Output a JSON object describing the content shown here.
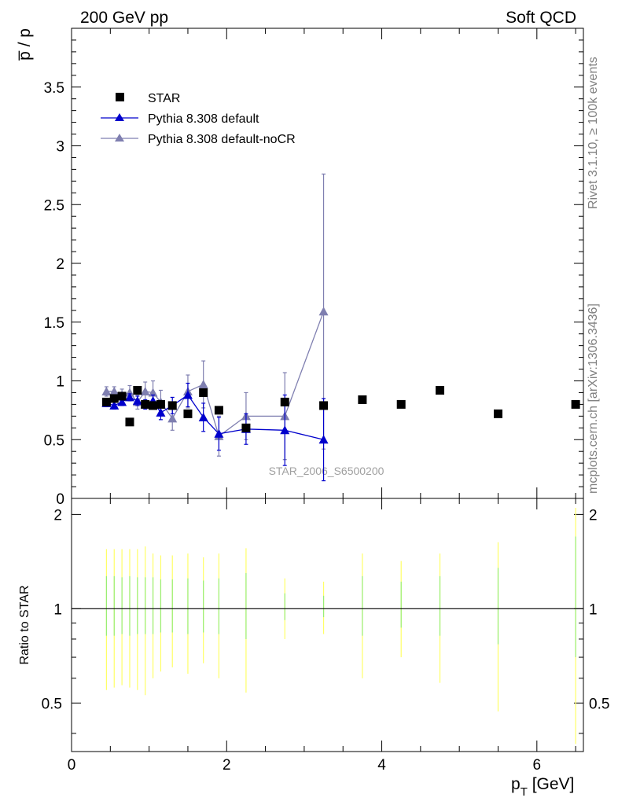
{
  "header": {
    "left": "200 GeV pp",
    "right": "Soft QCD"
  },
  "sidebar": {
    "rivet": "Rivet 3.1.10, ≥ 100k events",
    "mcplots": "mcplots.cern.ch [arXiv:1306.3436]"
  },
  "watermark": "STAR_2006_S6500200",
  "chart_data": [
    {
      "type": "scatter",
      "panel": "main",
      "ylabel": "p̅ / p",
      "ylim": [
        0,
        4.0
      ],
      "yticks": [
        "0",
        "0.5",
        "1",
        "1.5",
        "2",
        "2.5",
        "3",
        "3.5"
      ],
      "yticks_values": [
        0,
        0.5,
        1,
        1.5,
        2,
        2.5,
        3,
        3.5
      ],
      "xlim": [
        0,
        6.6
      ],
      "legend": {
        "position": "top-left",
        "entries": [
          "STAR",
          "Pythia 8.308 default",
          "Pythia 8.308 default-noCR"
        ]
      },
      "colors": {
        "STAR": "#000000",
        "default": "#0000cc",
        "noCR": "#7f7fb0"
      },
      "series": [
        {
          "name": "STAR",
          "marker": "square",
          "x": [
            0.45,
            0.55,
            0.65,
            0.75,
            0.85,
            0.95,
            1.05,
            1.15,
            1.3,
            1.5,
            1.7,
            1.9,
            2.25,
            2.75,
            3.25,
            3.75,
            4.25,
            4.75,
            5.5,
            6.5
          ],
          "y": [
            0.82,
            0.85,
            0.87,
            0.65,
            0.92,
            0.8,
            0.79,
            0.8,
            0.79,
            0.72,
            0.9,
            0.75,
            0.6,
            0.82,
            0.79,
            0.84,
            0.8,
            0.92,
            0.72,
            0.8
          ]
        },
        {
          "name": "Pythia 8.308 default",
          "marker": "triangle",
          "x": [
            0.45,
            0.55,
            0.65,
            0.75,
            0.85,
            0.95,
            1.05,
            1.15,
            1.3,
            1.5,
            1.7,
            1.9,
            2.25,
            2.75,
            3.25
          ],
          "y": [
            0.81,
            0.79,
            0.82,
            0.86,
            0.83,
            0.8,
            0.83,
            0.73,
            0.79,
            0.88,
            0.69,
            0.55,
            0.59,
            0.58,
            0.5
          ],
          "err": [
            0.03,
            0.03,
            0.03,
            0.03,
            0.04,
            0.04,
            0.05,
            0.06,
            0.07,
            0.1,
            0.12,
            0.14,
            0.13,
            0.3,
            0.35
          ]
        },
        {
          "name": "Pythia 8.308 default-noCR",
          "marker": "triangle",
          "x": [
            0.45,
            0.55,
            0.65,
            0.75,
            0.85,
            0.95,
            1.05,
            1.15,
            1.3,
            1.5,
            1.7,
            1.9,
            2.25,
            2.75,
            3.25
          ],
          "y": [
            0.91,
            0.91,
            0.88,
            0.9,
            0.82,
            0.91,
            0.9,
            0.82,
            0.68,
            0.91,
            0.97,
            0.53,
            0.7,
            0.7,
            1.59
          ],
          "err": [
            0.04,
            0.04,
            0.05,
            0.06,
            0.06,
            0.08,
            0.1,
            0.1,
            0.1,
            0.14,
            0.2,
            0.17,
            0.2,
            0.37,
            1.17
          ]
        }
      ]
    },
    {
      "type": "scatter",
      "panel": "ratio",
      "ylabel": "Ratio to STAR",
      "xlabel": "p",
      "xlabel_sub": "T",
      "xlabel_unit": " [GeV]",
      "xlim": [
        0,
        6.6
      ],
      "ylim": [
        0.35,
        2.25
      ],
      "xticks": [
        "0",
        "2",
        "4",
        "6"
      ],
      "xticks_values": [
        0,
        2,
        4,
        6
      ],
      "yticks": [
        "0.5",
        "1",
        "2"
      ],
      "yticks_values": [
        0.5,
        1,
        2
      ],
      "reference": 1,
      "bands": {
        "x": [
          0.45,
          0.55,
          0.65,
          0.75,
          0.85,
          0.95,
          1.05,
          1.15,
          1.3,
          1.5,
          1.7,
          1.9,
          2.25,
          2.75,
          3.25,
          3.75,
          4.25,
          4.75,
          5.5,
          6.5
        ],
        "stat_lo": [
          0.82,
          0.82,
          0.83,
          0.82,
          0.83,
          0.83,
          0.83,
          0.84,
          0.84,
          0.83,
          0.84,
          0.83,
          0.8,
          0.92,
          0.94,
          0.82,
          0.87,
          0.82,
          0.77,
          0.7
        ],
        "stat_hi": [
          1.27,
          1.27,
          1.26,
          1.27,
          1.26,
          1.26,
          1.26,
          1.24,
          1.24,
          1.25,
          1.23,
          1.25,
          1.3,
          1.12,
          1.1,
          1.27,
          1.22,
          1.27,
          1.35,
          1.7
        ],
        "total_lo": [
          0.55,
          0.56,
          0.57,
          0.56,
          0.55,
          0.53,
          0.6,
          0.63,
          0.65,
          0.62,
          0.67,
          0.6,
          0.54,
          0.8,
          0.83,
          0.6,
          0.7,
          0.58,
          0.47,
          0.37
        ],
        "total_hi": [
          1.55,
          1.55,
          1.55,
          1.55,
          1.55,
          1.58,
          1.5,
          1.48,
          1.48,
          1.5,
          1.46,
          1.5,
          1.56,
          1.25,
          1.22,
          1.5,
          1.42,
          1.5,
          1.63,
          2.1
        ],
        "stat_color": "#99ee77",
        "total_color": "#ffff66"
      }
    }
  ]
}
